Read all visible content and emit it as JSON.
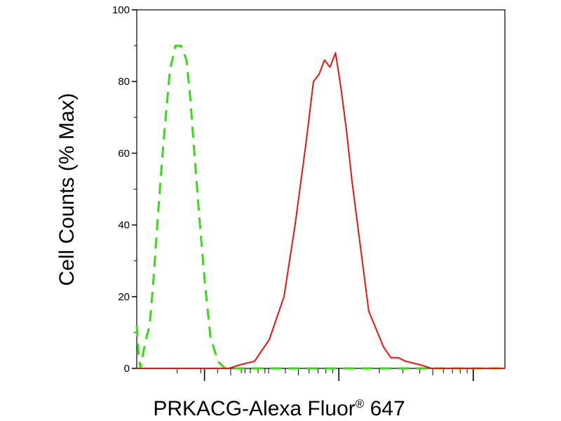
{
  "chart_data": {
    "type": "line",
    "title": "",
    "xlabel": "PRKACG-Alexa Fluor",
    "xlabel_superscript": "®",
    "xlabel_suffix": " 647",
    "ylabel": "Cell Counts (% Max)",
    "xscale": "log",
    "xlim": [
      0,
      100
    ],
    "ylim": [
      0,
      100
    ],
    "yticks": [
      0,
      20,
      40,
      60,
      80,
      100
    ],
    "ytick_labels": [
      "0",
      "20",
      "40",
      "60",
      "80",
      "100"
    ],
    "grid": false,
    "legend": "none",
    "series": [
      {
        "color": "#33dd11",
        "dash": "dashed",
        "x": [
          0,
          0.5,
          1,
          1.7,
          2.5,
          3.5,
          4.5,
          6,
          7.5,
          9,
          10.5,
          12,
          13.5,
          14.5,
          15.5,
          17,
          18.5,
          20,
          22,
          24,
          26,
          28,
          30,
          35,
          40,
          45,
          50,
          55,
          60,
          65,
          70,
          75,
          80,
          85,
          90,
          95,
          100
        ],
        "y": [
          12,
          4,
          0,
          4,
          8,
          12,
          24,
          46,
          66,
          83,
          90,
          90,
          86,
          76,
          62,
          42,
          24,
          9,
          2,
          0,
          0,
          0,
          0,
          0,
          0,
          0,
          0,
          0,
          0,
          0,
          0,
          0,
          0,
          0,
          0,
          0,
          0
        ]
      },
      {
        "color": "#ee1111",
        "dash": "solid",
        "x": [
          0,
          10,
          20,
          25,
          28,
          32,
          36,
          40,
          43,
          46,
          48,
          49.5,
          51,
          52.5,
          54,
          55.5,
          57,
          58.5,
          60,
          61.5,
          63,
          65,
          67,
          69,
          71,
          73,
          75,
          77,
          80,
          83,
          86,
          89,
          93,
          97,
          100
        ],
        "y": [
          0,
          0,
          0,
          0,
          1,
          2,
          8,
          20,
          40,
          63,
          80,
          82,
          86,
          84,
          88,
          78,
          66,
          52,
          40,
          28,
          16,
          11,
          6,
          3,
          3,
          2,
          1.5,
          1,
          0,
          0,
          0,
          0,
          0,
          0,
          0
        ]
      }
    ]
  }
}
